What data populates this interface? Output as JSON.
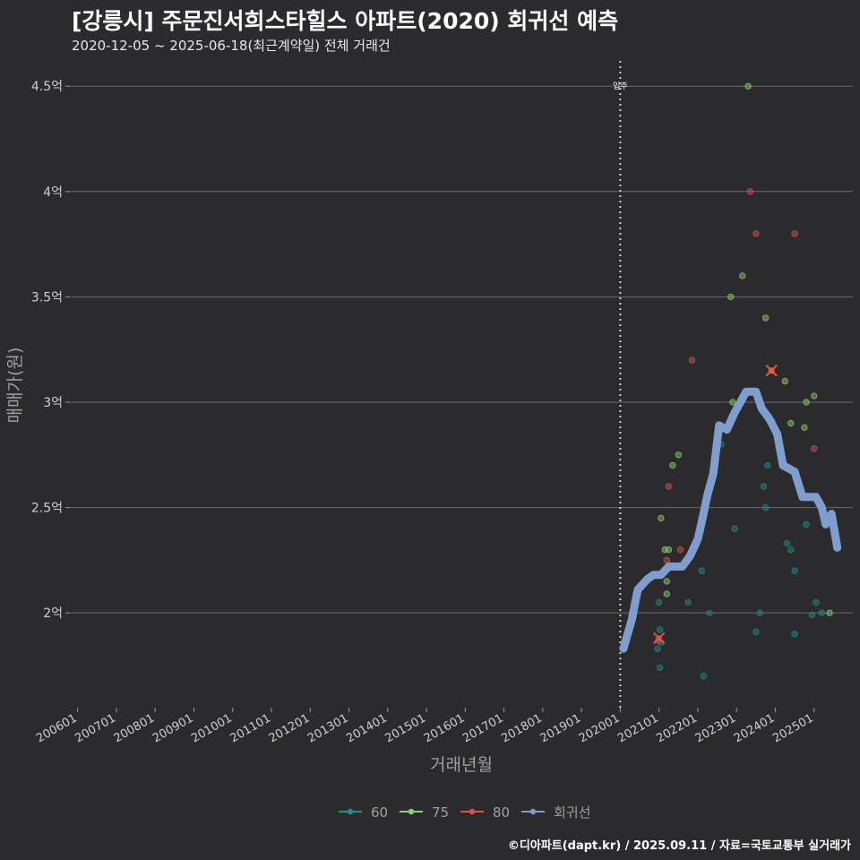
{
  "chart_data": {
    "type": "scatter",
    "title": "[강릉시] 주문진서희스타힐스 아파트(2020) 회귀선 예측",
    "subtitle": "2020-12-05 ~ 2025-06-18(최근계약일) 전체 거래건",
    "xlabel": "거래년월",
    "ylabel": "매매가(원)",
    "credit": "©디아파트(dapt.kr) / 2025.09.11 / 자료=국토교통부 실거래가",
    "xlim": [
      2005.8,
      2026.0
    ],
    "ylim": [
      1.55,
      4.62
    ],
    "x_ticks": [
      {
        "value": 2006,
        "label": "200601"
      },
      {
        "value": 2007,
        "label": "200701"
      },
      {
        "value": 2008,
        "label": "200801"
      },
      {
        "value": 2009,
        "label": "200901"
      },
      {
        "value": 2010,
        "label": "201001"
      },
      {
        "value": 2011,
        "label": "201101"
      },
      {
        "value": 2012,
        "label": "201201"
      },
      {
        "value": 2013,
        "label": "201301"
      },
      {
        "value": 2014,
        "label": "201401"
      },
      {
        "value": 2015,
        "label": "201501"
      },
      {
        "value": 2016,
        "label": "201601"
      },
      {
        "value": 2017,
        "label": "201701"
      },
      {
        "value": 2018,
        "label": "201801"
      },
      {
        "value": 2019,
        "label": "201901"
      },
      {
        "value": 2020,
        "label": "202001"
      },
      {
        "value": 2021,
        "label": "202101"
      },
      {
        "value": 2022,
        "label": "202201"
      },
      {
        "value": 2023,
        "label": "202301"
      },
      {
        "value": 2024,
        "label": "202401"
      },
      {
        "value": 2025,
        "label": "202501"
      }
    ],
    "y_ticks": [
      {
        "value": 2.0,
        "label": "2억"
      },
      {
        "value": 2.5,
        "label": "2.5억"
      },
      {
        "value": 3.0,
        "label": "3억"
      },
      {
        "value": 3.5,
        "label": "3.5억"
      },
      {
        "value": 4.0,
        "label": "4억"
      },
      {
        "value": 4.5,
        "label": "4.5억"
      }
    ],
    "annotation": {
      "x": 2020.0,
      "label": "입주"
    },
    "series": [
      {
        "name": "60",
        "color": "#1f8f8a",
        "points": [
          [
            2020.96,
            1.83
          ],
          [
            2021.02,
            1.92
          ],
          [
            2021.02,
            1.74
          ],
          [
            2021.05,
            1.86
          ],
          [
            2021.0,
            2.05
          ],
          [
            2021.75,
            2.05
          ],
          [
            2022.15,
            1.7
          ],
          [
            2022.1,
            2.2
          ],
          [
            2022.3,
            2.0
          ],
          [
            2022.6,
            2.8
          ],
          [
            2022.95,
            2.4
          ],
          [
            2023.6,
            2.0
          ],
          [
            2023.5,
            1.91
          ],
          [
            2023.7,
            2.6
          ],
          [
            2023.75,
            2.5
          ],
          [
            2023.8,
            2.7
          ],
          [
            2024.3,
            2.33
          ],
          [
            2024.4,
            2.3
          ],
          [
            2024.5,
            2.2
          ],
          [
            2024.5,
            1.9
          ],
          [
            2024.8,
            2.42
          ],
          [
            2024.95,
            1.99
          ],
          [
            2025.05,
            2.05
          ],
          [
            2025.2,
            2.0
          ]
        ]
      },
      {
        "name": "75",
        "color": "#8ed16e",
        "points": [
          [
            2021.05,
            2.45
          ],
          [
            2021.15,
            2.3
          ],
          [
            2021.25,
            2.3
          ],
          [
            2021.2,
            2.15
          ],
          [
            2021.2,
            2.09
          ],
          [
            2021.35,
            2.7
          ],
          [
            2021.5,
            2.75
          ],
          [
            2022.85,
            3.5
          ],
          [
            2022.9,
            3.0
          ],
          [
            2023.15,
            3.6
          ],
          [
            2023.3,
            4.5
          ],
          [
            2023.75,
            3.4
          ],
          [
            2024.25,
            3.1
          ],
          [
            2024.4,
            2.9
          ],
          [
            2024.8,
            3.0
          ],
          [
            2024.75,
            2.88
          ],
          [
            2025.0,
            3.03
          ],
          [
            2025.4,
            2.0
          ]
        ]
      },
      {
        "name": "80",
        "color": "#d9534f",
        "points": [
          [
            2020.98,
            1.87
          ],
          [
            2021.2,
            2.25
          ],
          [
            2021.25,
            2.6
          ],
          [
            2021.55,
            2.3
          ],
          [
            2021.85,
            3.2
          ],
          [
            2023.35,
            4.0
          ],
          [
            2023.5,
            3.8
          ],
          [
            2024.5,
            3.8
          ],
          [
            2023.9,
            3.15
          ],
          [
            2025.0,
            2.78
          ]
        ]
      }
    ],
    "highlights": [
      {
        "x": 2021.0,
        "y": 1.88,
        "color": "#d9534f"
      },
      {
        "x": 2023.9,
        "y": 3.15,
        "color": "#e0603a"
      }
    ],
    "regression": {
      "name": "회귀선",
      "color": "#7f9ecf",
      "points": [
        [
          2020.08,
          1.83
        ],
        [
          2020.3,
          1.97
        ],
        [
          2020.45,
          2.11
        ],
        [
          2020.7,
          2.16
        ],
        [
          2020.85,
          2.18
        ],
        [
          2021.05,
          2.18
        ],
        [
          2021.25,
          2.22
        ],
        [
          2021.6,
          2.22
        ],
        [
          2021.8,
          2.27
        ],
        [
          2022.0,
          2.35
        ],
        [
          2022.1,
          2.43
        ],
        [
          2022.25,
          2.56
        ],
        [
          2022.4,
          2.66
        ],
        [
          2022.55,
          2.89
        ],
        [
          2022.75,
          2.87
        ],
        [
          2022.95,
          2.95
        ],
        [
          2023.1,
          3.0
        ],
        [
          2023.25,
          3.05
        ],
        [
          2023.5,
          3.05
        ],
        [
          2023.65,
          2.97
        ],
        [
          2023.85,
          2.92
        ],
        [
          2024.05,
          2.85
        ],
        [
          2024.2,
          2.7
        ],
        [
          2024.5,
          2.67
        ],
        [
          2024.7,
          2.55
        ],
        [
          2025.05,
          2.55
        ],
        [
          2025.2,
          2.5
        ],
        [
          2025.3,
          2.42
        ],
        [
          2025.45,
          2.47
        ],
        [
          2025.6,
          2.31
        ]
      ]
    },
    "legend": {
      "position": "bottom",
      "items": [
        {
          "name": "60",
          "color": "#1f8f8a"
        },
        {
          "name": "75",
          "color": "#8ed16e"
        },
        {
          "name": "80",
          "color": "#d9534f"
        },
        {
          "name": "회귀선",
          "color": "#7f9ecf"
        }
      ]
    }
  }
}
